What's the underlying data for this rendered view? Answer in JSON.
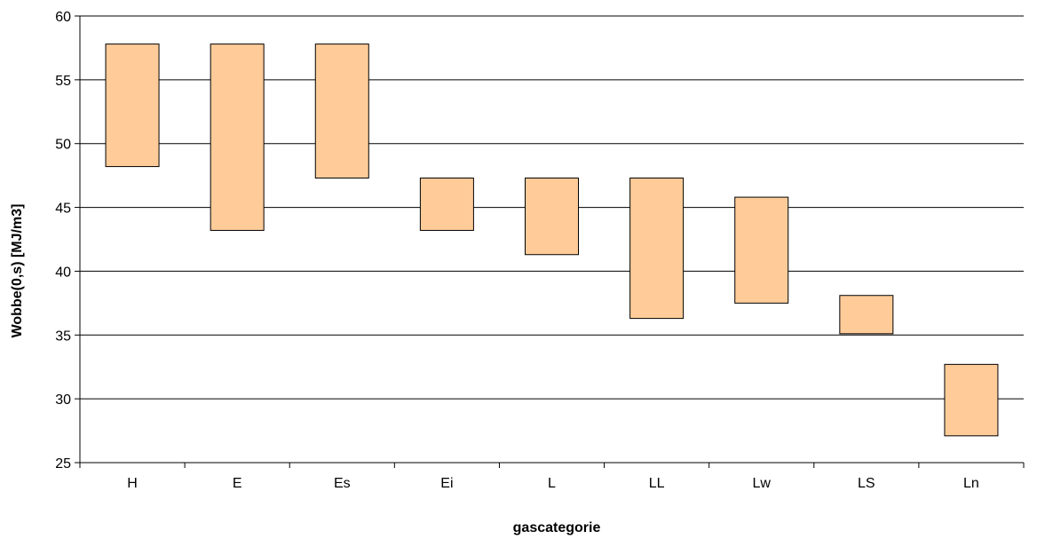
{
  "chart_data": {
    "type": "bar",
    "subtype": "floating-range",
    "title": "",
    "xlabel": "gascategorie",
    "ylabel": "Wobbe(0,s) [MJ/m3]",
    "ylim": [
      25,
      60
    ],
    "yticks": [
      25,
      30,
      35,
      40,
      45,
      50,
      55,
      60
    ],
    "grid": true,
    "legend": "none",
    "categories": [
      "H",
      "E",
      "Es",
      "Ei",
      "L",
      "LL",
      "Lw",
      "LS",
      "Ln"
    ],
    "low": [
      48.2,
      43.2,
      47.3,
      43.2,
      41.3,
      36.3,
      37.5,
      35.1,
      27.1
    ],
    "high": [
      57.8,
      57.8,
      57.8,
      47.3,
      47.3,
      47.3,
      45.8,
      38.1,
      32.7
    ],
    "bar_color": "#ffcc99",
    "bar_stroke": "#000000"
  }
}
